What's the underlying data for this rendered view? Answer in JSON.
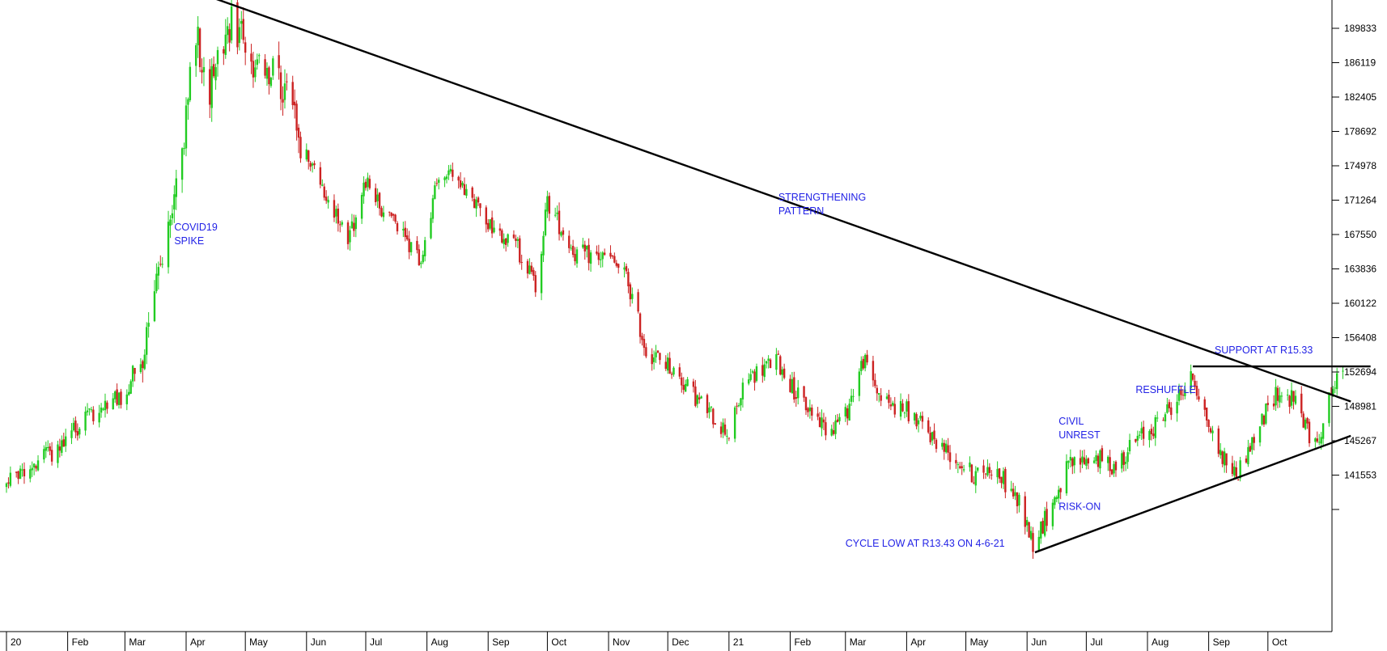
{
  "chart_data": {
    "type": "candlestick",
    "title": "",
    "xlabel": "",
    "ylabel": "",
    "grid": false,
    "legend": "none",
    "ylim": [
      133000,
      194000
    ],
    "y_ticks": [
      189833,
      186119,
      182405,
      178692,
      174978,
      171264,
      167550,
      163836,
      160122,
      156408,
      152694,
      148981,
      145267,
      141553,
      137839
    ],
    "y_tick_labels": [
      "189833",
      "186119",
      "182405",
      "178692",
      "174978",
      "171264",
      "167550",
      "163836",
      "160122",
      "156408",
      "152694",
      "148981",
      "145267",
      "141553",
      ""
    ],
    "x_start": "2020-01-01",
    "x_end": "2021-10-31",
    "x_ticks": [
      {
        "date": "2020-01-01",
        "label": "20"
      },
      {
        "date": "2020-02-01",
        "label": "Feb"
      },
      {
        "date": "2020-03-01",
        "label": "Mar"
      },
      {
        "date": "2020-04-01",
        "label": "Apr"
      },
      {
        "date": "2020-05-01",
        "label": "May"
      },
      {
        "date": "2020-06-01",
        "label": "Jun"
      },
      {
        "date": "2020-07-01",
        "label": "Jul"
      },
      {
        "date": "2020-08-01",
        "label": "Aug"
      },
      {
        "date": "2020-09-01",
        "label": "Sep"
      },
      {
        "date": "2020-10-01",
        "label": "Oct"
      },
      {
        "date": "2020-11-01",
        "label": "Nov"
      },
      {
        "date": "2020-12-01",
        "label": "Dec"
      },
      {
        "date": "2021-01-01",
        "label": "21"
      },
      {
        "date": "2021-02-01",
        "label": "Feb"
      },
      {
        "date": "2021-03-01",
        "label": "Mar"
      },
      {
        "date": "2021-04-01",
        "label": "Apr"
      },
      {
        "date": "2021-05-01",
        "label": "May"
      },
      {
        "date": "2021-06-01",
        "label": "Jun"
      },
      {
        "date": "2021-07-01",
        "label": "Jul"
      },
      {
        "date": "2021-08-01",
        "label": "Aug"
      },
      {
        "date": "2021-09-01",
        "label": "Sep"
      },
      {
        "date": "2021-10-01",
        "label": "Oct"
      }
    ],
    "price_path": [
      [
        "2020-01-01",
        140500
      ],
      [
        "2020-01-15",
        142500
      ],
      [
        "2020-02-01",
        145500
      ],
      [
        "2020-02-15",
        148500
      ],
      [
        "2020-03-01",
        150500
      ],
      [
        "2020-03-10",
        155000
      ],
      [
        "2020-03-20",
        166000
      ],
      [
        "2020-03-31",
        177000
      ],
      [
        "2020-04-05",
        190500
      ],
      [
        "2020-04-12",
        183000
      ],
      [
        "2020-04-18",
        186500
      ],
      [
        "2020-04-24",
        190500
      ],
      [
        "2020-05-05",
        186500
      ],
      [
        "2020-05-20",
        183500
      ],
      [
        "2020-06-01",
        176000
      ],
      [
        "2020-06-10",
        172500
      ],
      [
        "2020-06-22",
        167000
      ],
      [
        "2020-07-01",
        173000
      ],
      [
        "2020-07-15",
        168500
      ],
      [
        "2020-07-29",
        164500
      ],
      [
        "2020-08-08",
        175000
      ],
      [
        "2020-08-20",
        172000
      ],
      [
        "2020-09-01",
        169000
      ],
      [
        "2020-09-15",
        166500
      ],
      [
        "2020-09-25",
        162000
      ],
      [
        "2020-10-01",
        171000
      ],
      [
        "2020-10-15",
        165500
      ],
      [
        "2020-11-01",
        165000
      ],
      [
        "2020-11-10",
        163000
      ],
      [
        "2020-11-20",
        155000
      ],
      [
        "2020-12-01",
        153500
      ],
      [
        "2020-12-15",
        150000
      ],
      [
        "2021-01-01",
        146000
      ],
      [
        "2021-01-10",
        152000
      ],
      [
        "2021-01-25",
        154000
      ],
      [
        "2021-02-05",
        150000
      ],
      [
        "2021-02-20",
        146500
      ],
      [
        "2021-03-01",
        148000
      ],
      [
        "2021-03-10",
        154000
      ],
      [
        "2021-03-20",
        149500
      ],
      [
        "2021-04-01",
        148500
      ],
      [
        "2021-04-15",
        145500
      ],
      [
        "2021-04-25",
        143500
      ],
      [
        "2021-05-05",
        141500
      ],
      [
        "2021-05-15",
        142500
      ],
      [
        "2021-05-28",
        138500
      ],
      [
        "2021-06-04",
        134300
      ],
      [
        "2021-06-12",
        137500
      ],
      [
        "2021-06-22",
        142500
      ],
      [
        "2021-07-05",
        143500
      ],
      [
        "2021-07-15",
        142500
      ],
      [
        "2021-07-25",
        145000
      ],
      [
        "2021-08-05",
        147000
      ],
      [
        "2021-08-15",
        149500
      ],
      [
        "2021-08-24",
        152200
      ],
      [
        "2021-09-05",
        144500
      ],
      [
        "2021-09-15",
        141500
      ],
      [
        "2021-09-25",
        146000
      ],
      [
        "2021-10-05",
        150500
      ],
      [
        "2021-10-15",
        149500
      ],
      [
        "2021-10-25",
        144500
      ],
      [
        "2021-11-02",
        150500
      ],
      [
        "2021-11-08",
        152700
      ]
    ],
    "trendlines": [
      {
        "from": {
          "date": "2020-04-03",
          "value": 194000
        },
        "to": {
          "date": "2021-11-12",
          "value": 149500
        }
      },
      {
        "from": {
          "date": "2021-08-24",
          "value": 153300
        },
        "to": {
          "date": "2021-11-22",
          "value": 153300
        }
      },
      {
        "from": {
          "date": "2021-06-05",
          "value": 133200
        },
        "to": {
          "date": "2021-11-12",
          "value": 145800
        }
      }
    ],
    "annotations": [
      {
        "lines": [
          "COVID19",
          "SPIKE"
        ],
        "date": "2020-03-26",
        "value": 168000
      },
      {
        "lines": [
          "STRENGTHENING",
          "PATTERN"
        ],
        "date": "2021-01-26",
        "value": 171200
      },
      {
        "lines": [
          "SUPPORT AT R15.33"
        ],
        "date": "2021-09-04",
        "value": 154700
      },
      {
        "lines": [
          "RESHUFFLE"
        ],
        "date": "2021-07-26",
        "value": 150400
      },
      {
        "lines": [
          "CIVIL",
          "UNREST"
        ],
        "date": "2021-06-17",
        "value": 147000
      },
      {
        "lines": [
          "RISK-ON"
        ],
        "date": "2021-06-17",
        "value": 137800
      },
      {
        "lines": [
          "CYCLE LOW AT R13.43 ON 4-6-21"
        ],
        "date": "2021-03-01",
        "value": 133800
      }
    ],
    "up_color": "#22cc22",
    "down_color": "#cc2222",
    "line_color": "#000000",
    "annotation_color": "#2323e6"
  }
}
